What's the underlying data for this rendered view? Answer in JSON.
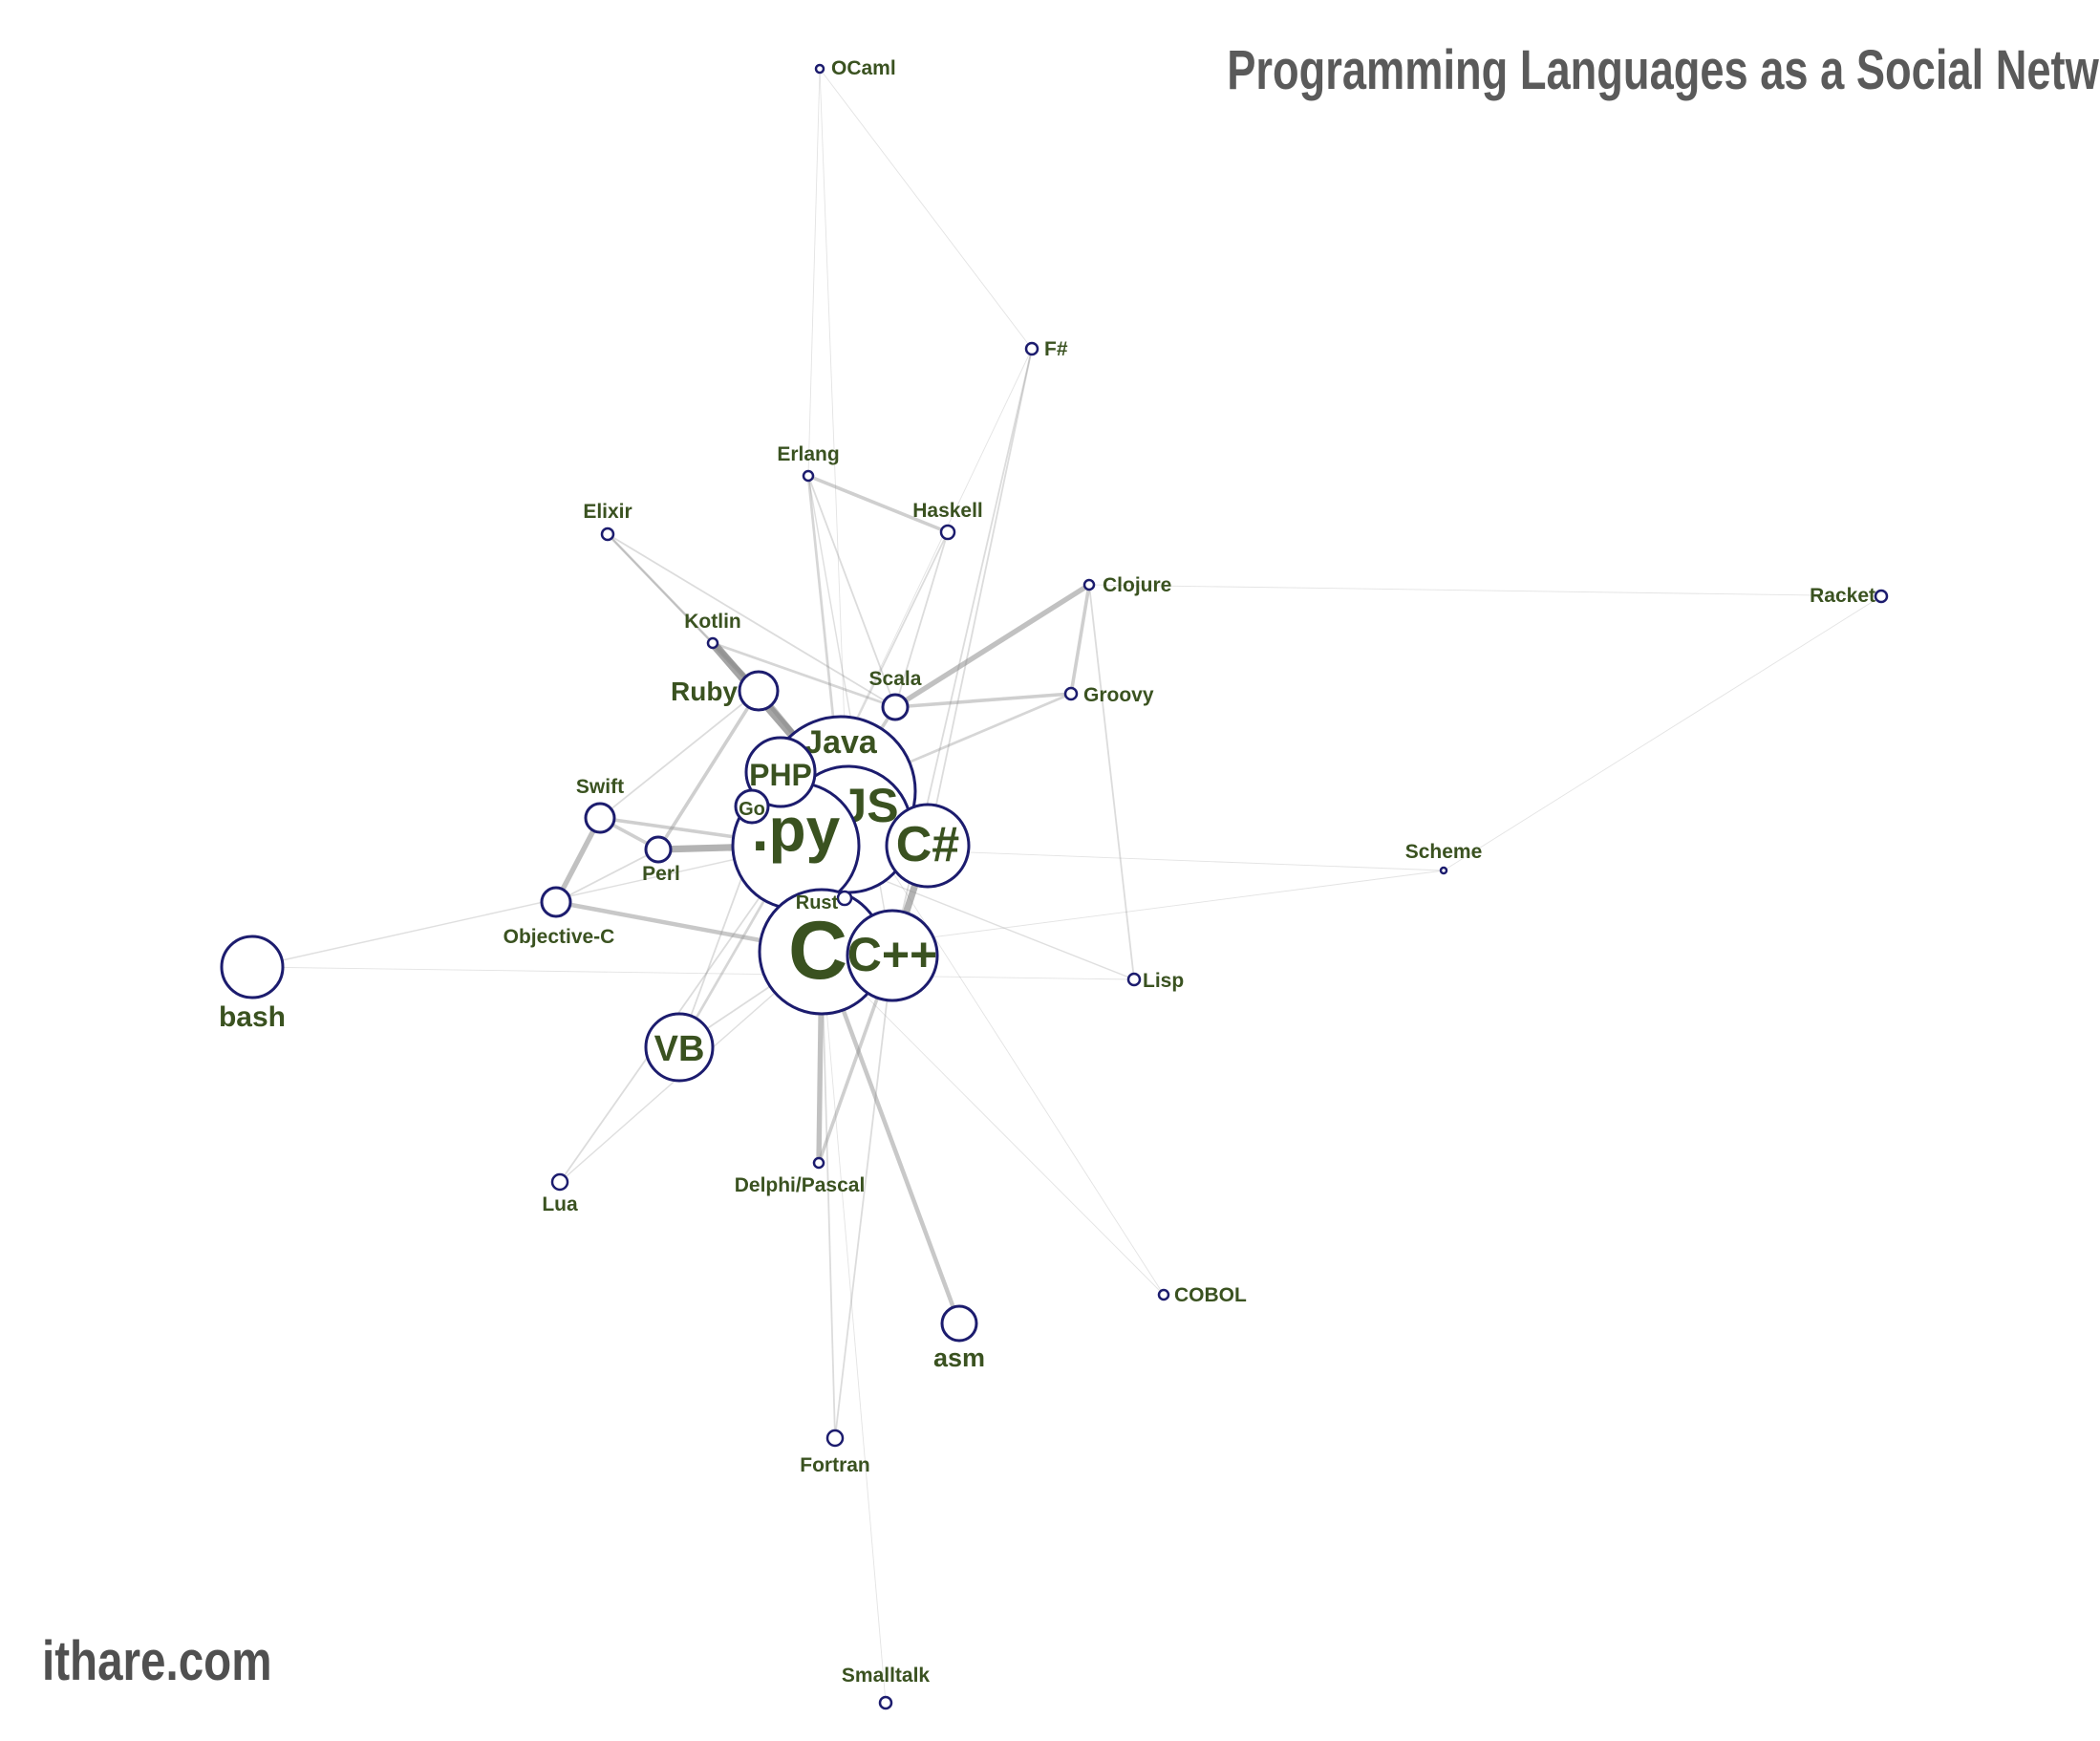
{
  "header": {
    "title": "Programming Languages as a Social Network"
  },
  "footer": {
    "site": "ithare.com"
  },
  "colors": {
    "node_stroke": "#1c1c6e",
    "label": "#3a5220",
    "edge": "#8c8c8c",
    "background": "#ffffff"
  },
  "nodes": [
    {
      "id": "java",
      "label": "Java"
    },
    {
      "id": "js",
      "label": "JS"
    },
    {
      "id": "py",
      "label": ".py"
    },
    {
      "id": "php",
      "label": "PHP"
    },
    {
      "id": "go",
      "label": "Go"
    },
    {
      "id": "csharp",
      "label": "C#"
    },
    {
      "id": "c",
      "label": "C"
    },
    {
      "id": "cpp",
      "label": "C++"
    },
    {
      "id": "rust",
      "label": "Rust"
    },
    {
      "id": "ruby",
      "label": "Ruby"
    },
    {
      "id": "kotlin",
      "label": "Kotlin"
    },
    {
      "id": "scala",
      "label": "Scala"
    },
    {
      "id": "groovy",
      "label": "Groovy"
    },
    {
      "id": "clojure",
      "label": "Clojure"
    },
    {
      "id": "haskell",
      "label": "Haskell"
    },
    {
      "id": "erlang",
      "label": "Erlang"
    },
    {
      "id": "elixir",
      "label": "Elixir"
    },
    {
      "id": "fsharp",
      "label": "F#"
    },
    {
      "id": "ocaml",
      "label": "OCaml"
    },
    {
      "id": "racket",
      "label": "Racket"
    },
    {
      "id": "scheme",
      "label": "Scheme"
    },
    {
      "id": "lisp",
      "label": "Lisp"
    },
    {
      "id": "swift",
      "label": "Swift"
    },
    {
      "id": "perl",
      "label": "Perl"
    },
    {
      "id": "objc",
      "label": "Objective-C"
    },
    {
      "id": "bash",
      "label": "bash"
    },
    {
      "id": "vb",
      "label": "VB"
    },
    {
      "id": "lua",
      "label": "Lua"
    },
    {
      "id": "delphi",
      "label": "Delphi/Pascal"
    },
    {
      "id": "asm",
      "label": "asm"
    },
    {
      "id": "cobol",
      "label": "COBOL"
    },
    {
      "id": "fortran",
      "label": "Fortran"
    },
    {
      "id": "smalltalk",
      "label": "Smalltalk"
    }
  ],
  "edges": [
    {
      "from": "java",
      "to": "js",
      "weight": 6
    },
    {
      "from": "java",
      "to": "py",
      "weight": 6
    },
    {
      "from": "js",
      "to": "py",
      "weight": 6
    },
    {
      "from": "js",
      "to": "php",
      "weight": 6
    },
    {
      "from": "java",
      "to": "csharp",
      "weight": 5
    },
    {
      "from": "c",
      "to": "cpp",
      "weight": 6
    },
    {
      "from": "py",
      "to": "c",
      "weight": 4
    },
    {
      "from": "csharp",
      "to": "cpp",
      "weight": 4
    },
    {
      "from": "java",
      "to": "c",
      "weight": 4
    },
    {
      "from": "ruby",
      "to": "kotlin",
      "weight": 3
    },
    {
      "from": "kotlin",
      "to": "java",
      "weight": 5
    },
    {
      "from": "ruby",
      "to": "java",
      "weight": 3
    },
    {
      "from": "scala",
      "to": "groovy",
      "weight": 2
    },
    {
      "from": "scala",
      "to": "java",
      "weight": 2
    },
    {
      "from": "groovy",
      "to": "java",
      "weight": 1.5
    },
    {
      "from": "clojure",
      "to": "groovy",
      "weight": 2
    },
    {
      "from": "clojure",
      "to": "scala",
      "weight": 3
    },
    {
      "from": "clojure",
      "to": "lisp",
      "weight": 1
    },
    {
      "from": "erlang",
      "to": "haskell",
      "weight": 2
    },
    {
      "from": "erlang",
      "to": "java",
      "weight": 1.5
    },
    {
      "from": "erlang",
      "to": "scala",
      "weight": 1
    },
    {
      "from": "erlang",
      "to": "cpp",
      "weight": 0.8
    },
    {
      "from": "haskell",
      "to": "scala",
      "weight": 1
    },
    {
      "from": "haskell",
      "to": "py",
      "weight": 1
    },
    {
      "from": "elixir",
      "to": "kotlin",
      "weight": 1.5
    },
    {
      "from": "elixir",
      "to": "scala",
      "weight": 1
    },
    {
      "from": "elixir",
      "to": "ruby",
      "weight": 1
    },
    {
      "from": "kotlin",
      "to": "scala",
      "weight": 1.5
    },
    {
      "from": "swift",
      "to": "objc",
      "weight": 3
    },
    {
      "from": "swift",
      "to": "perl",
      "weight": 2
    },
    {
      "from": "swift",
      "to": "py",
      "weight": 2
    },
    {
      "from": "swift",
      "to": "ruby",
      "weight": 1
    },
    {
      "from": "perl",
      "to": "py",
      "weight": 4
    },
    {
      "from": "perl",
      "to": "ruby",
      "weight": 2
    },
    {
      "from": "objc",
      "to": "c",
      "weight": 2.5
    },
    {
      "from": "objc",
      "to": "perl",
      "weight": 1
    },
    {
      "from": "bash",
      "to": "py",
      "weight": 0.8
    },
    {
      "from": "bash",
      "to": "lisp",
      "weight": 0.5
    },
    {
      "from": "vb",
      "to": "py",
      "weight": 1.5
    },
    {
      "from": "vb",
      "to": "php",
      "weight": 1
    },
    {
      "from": "vb",
      "to": "c",
      "weight": 1
    },
    {
      "from": "lua",
      "to": "py",
      "weight": 1
    },
    {
      "from": "lua",
      "to": "c",
      "weight": 0.8
    },
    {
      "from": "delphi",
      "to": "c",
      "weight": 3
    },
    {
      "from": "delphi",
      "to": "cpp",
      "weight": 2
    },
    {
      "from": "asm",
      "to": "c",
      "weight": 2.5
    },
    {
      "from": "fortran",
      "to": "c",
      "weight": 1
    },
    {
      "from": "fortran",
      "to": "cpp",
      "weight": 1
    },
    {
      "from": "smalltalk",
      "to": "c",
      "weight": 0.5
    },
    {
      "from": "fsharp",
      "to": "cpp",
      "weight": 1
    },
    {
      "from": "fsharp",
      "to": "csharp",
      "weight": 1
    },
    {
      "from": "fsharp",
      "to": "py",
      "weight": 0.5
    },
    {
      "from": "ocaml",
      "to": "js",
      "weight": 0.5
    },
    {
      "from": "ocaml",
      "to": "fsharp",
      "weight": 0.5
    },
    {
      "from": "ocaml",
      "to": "erlang",
      "weight": 0.5
    },
    {
      "from": "scheme",
      "to": "c",
      "weight": 0.5
    },
    {
      "from": "scheme",
      "to": "py",
      "weight": 0.5
    },
    {
      "from": "racket",
      "to": "clojure",
      "weight": 0.5
    },
    {
      "from": "racket",
      "to": "scheme",
      "weight": 0.5
    },
    {
      "from": "cobol",
      "to": "c",
      "weight": 0.5
    },
    {
      "from": "cobol",
      "to": "java",
      "weight": 0.5
    },
    {
      "from": "lisp",
      "to": "py",
      "weight": 0.8
    },
    {
      "from": "rust",
      "to": "c",
      "weight": 1
    },
    {
      "from": "go",
      "to": "py",
      "weight": 2
    }
  ]
}
